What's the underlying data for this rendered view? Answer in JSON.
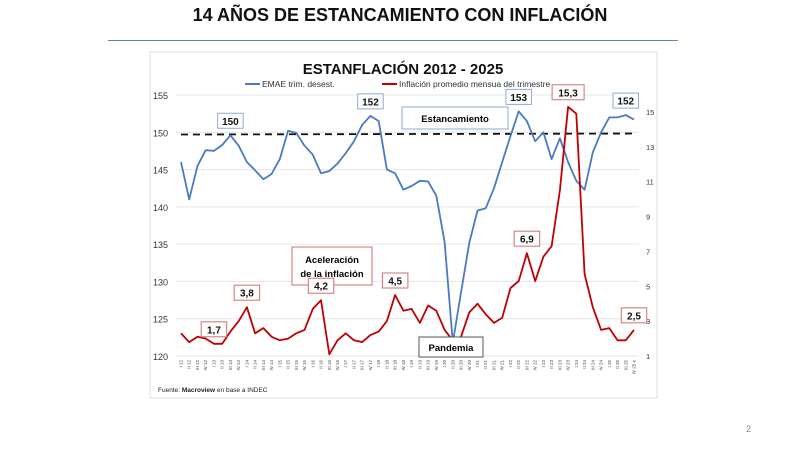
{
  "slide": {
    "title": "14 AÑOS DE ESTANCAMIENTO CON INFLACIÓN",
    "page_number": "2",
    "source_prefix": "Fuente: ",
    "source_brand": "Macroview",
    "source_suffix": " en base a INDEC"
  },
  "chart_data": {
    "type": "line",
    "title": "ESTANFLACIÓN 2012 - 2025",
    "x": [
      "I 12",
      "II 12",
      "III 12",
      "IV 12",
      "I 13",
      "II 13",
      "III 13",
      "IV 13",
      "I 14",
      "II 14",
      "III 14",
      "IV 14",
      "I 15",
      "II 15",
      "III 15",
      "IV 15",
      "I 16",
      "II 16",
      "III 16",
      "IV 16",
      "I 17",
      "II 17",
      "III 17",
      "IV 17",
      "I 18",
      "II 18",
      "III 18",
      "IV 18",
      "I 19",
      "II 19",
      "III 19",
      "IV 19",
      "I 20",
      "II 20",
      "III 20",
      "IV 20",
      "I 21",
      "II 21",
      "III 21",
      "IV 21",
      "I 22",
      "II 22",
      "III 22",
      "IV 22",
      "I 23",
      "II 23",
      "III 23",
      "IV 23",
      "I 24",
      "II 24",
      "III 24",
      "IV 24",
      "I 25",
      "II 25",
      "III 25",
      "IV 25 e"
    ],
    "series": [
      {
        "name": "EMAE trim. desest.",
        "axis": "left",
        "color": "#4a7ac0",
        "values": [
          146,
          141,
          145.5,
          147.6,
          147.5,
          148.3,
          149.6,
          148.2,
          146,
          144.9,
          143.7,
          144.4,
          146.4,
          150.2,
          149.9,
          148.2,
          147,
          144.5,
          144.8,
          145.8,
          147.2,
          148.8,
          151,
          152.2,
          151.5,
          145,
          144.5,
          142.3,
          142.8,
          143.5,
          143.4,
          141.5,
          135.3,
          121.8,
          128.5,
          135.2,
          139.5,
          139.8,
          142.5,
          146,
          149.5,
          152.8,
          151.5,
          148.8,
          150,
          146.4,
          149.2,
          146,
          143.5,
          142.3,
          147.3,
          150,
          152,
          152,
          152.3,
          151.7
        ]
      },
      {
        "name": "Inflación promedio mensua del trimestre",
        "axis": "right",
        "color": "#c00000",
        "values": [
          2.3,
          1.8,
          2.1,
          2.0,
          1.7,
          1.7,
          2.4,
          3.0,
          3.8,
          2.3,
          2.6,
          2.1,
          1.9,
          2.0,
          2.3,
          2.5,
          3.7,
          4.2,
          1.1,
          1.9,
          2.3,
          1.9,
          1.8,
          2.2,
          2.4,
          3.0,
          4.5,
          3.6,
          3.7,
          2.9,
          3.9,
          3.6,
          2.5,
          1.9,
          2.1,
          3.5,
          4.0,
          3.4,
          2.9,
          3.2,
          4.9,
          5.3,
          6.9,
          5.3,
          6.7,
          7.3,
          10.5,
          15.3,
          14.9,
          5.7,
          3.8,
          2.5,
          2.6,
          1.9,
          1.9,
          2.5
        ]
      }
    ],
    "left_axis": {
      "ylim": [
        120,
        155
      ],
      "ticks": [
        "120",
        "125",
        "130",
        "135",
        "140",
        "145",
        "150",
        "155"
      ]
    },
    "right_axis": {
      "ylim": [
        1,
        15
      ],
      "ticks": [
        "1",
        "3",
        "5",
        "7",
        "9",
        "11",
        "13",
        "15"
      ]
    },
    "reference_line": {
      "value": 149.7,
      "style": "dashed"
    },
    "data_labels": [
      {
        "series": 0,
        "index": 6,
        "text": "150"
      },
      {
        "series": 0,
        "index": 23,
        "text": "152"
      },
      {
        "series": 0,
        "index": 41,
        "text": "153"
      },
      {
        "series": 0,
        "index": 54,
        "text": "152"
      },
      {
        "series": 1,
        "index": 4,
        "text": "1,7"
      },
      {
        "series": 1,
        "index": 8,
        "text": "3,8"
      },
      {
        "series": 1,
        "index": 17,
        "text": "4,2"
      },
      {
        "series": 1,
        "index": 26,
        "text": "4,5"
      },
      {
        "series": 1,
        "index": 42,
        "text": "6,9"
      },
      {
        "series": 1,
        "index": 47,
        "text": "15,3"
      },
      {
        "series": 1,
        "index": 55,
        "text": "2,5"
      }
    ],
    "annotations": {
      "stagnation": "Estancamiento",
      "acceleration_1": "Aceleración",
      "acceleration_2": "de la inflación",
      "pandemic": "Pandemia"
    },
    "legend": "top-center",
    "grid": true
  }
}
